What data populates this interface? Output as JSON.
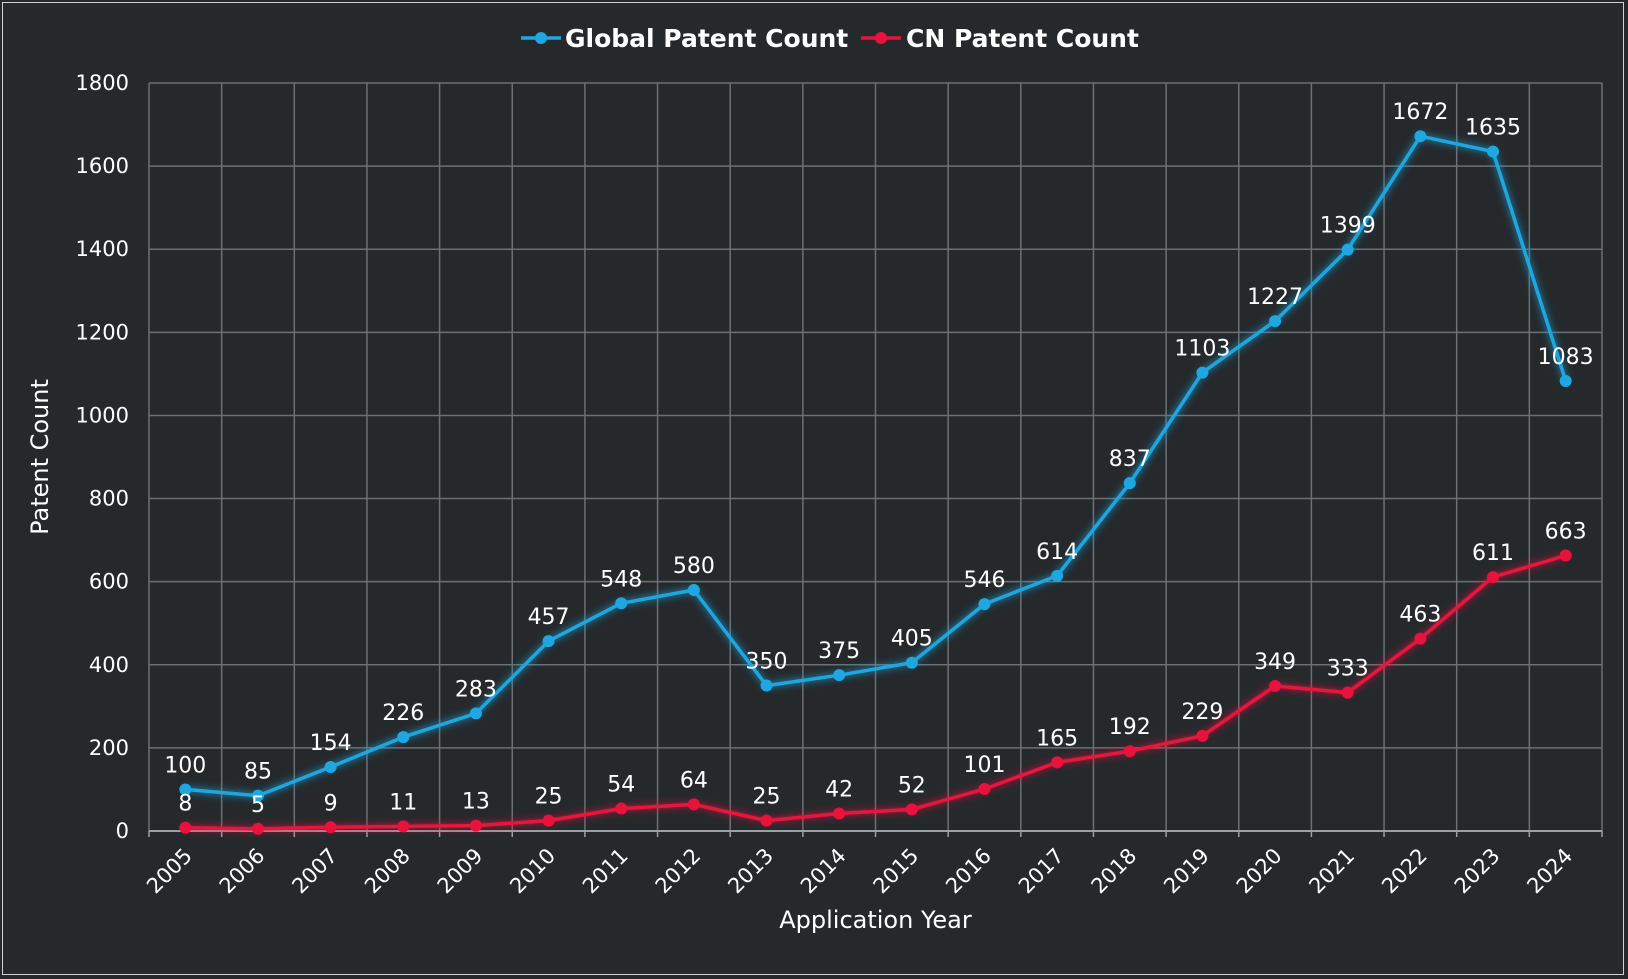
{
  "chart_data": {
    "type": "line",
    "categories": [
      "2005",
      "2006",
      "2007",
      "2008",
      "2009",
      "2010",
      "2011",
      "2012",
      "2013",
      "2014",
      "2015",
      "2016",
      "2017",
      "2018",
      "2019",
      "2020",
      "2021",
      "2022",
      "2023",
      "2024"
    ],
    "series": [
      {
        "name": "Global Patent Count",
        "color": "#1ea7e1",
        "values": [
          100,
          85,
          154,
          226,
          283,
          457,
          548,
          580,
          350,
          375,
          405,
          546,
          614,
          837,
          1103,
          1227,
          1399,
          1672,
          1635,
          1083
        ]
      },
      {
        "name": "CN Patent Count",
        "color": "#e8123c",
        "values": [
          8,
          5,
          9,
          11,
          13,
          25,
          54,
          64,
          25,
          42,
          52,
          101,
          165,
          192,
          229,
          349,
          333,
          463,
          611,
          663
        ]
      }
    ],
    "xlabel": "Application Year",
    "ylabel": "Patent Count",
    "ylim": [
      0,
      1800
    ],
    "yticks": [
      0,
      200,
      400,
      600,
      800,
      1000,
      1200,
      1400,
      1600,
      1800
    ],
    "grid": true,
    "legend_position": "top-center"
  }
}
